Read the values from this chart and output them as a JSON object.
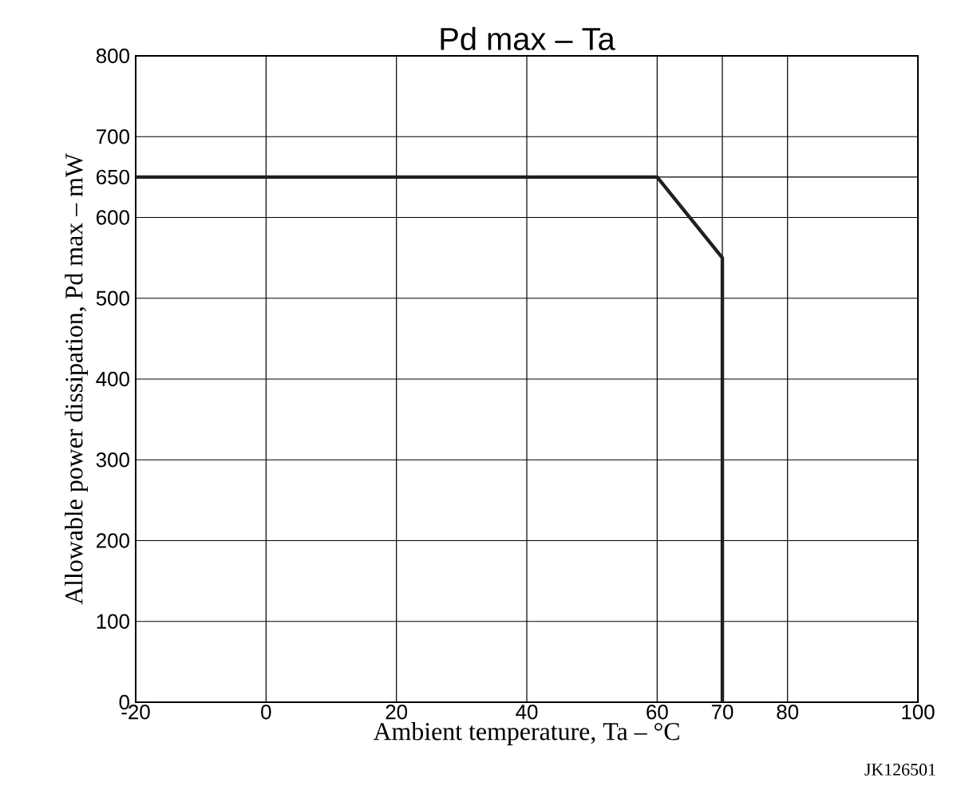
{
  "chart_data": {
    "type": "line",
    "title": "Pd max – Ta",
    "xlabel": "Ambient temperature, Ta – °C",
    "ylabel": "Allowable power dissipation, Pd max – mW",
    "series": [
      {
        "color": "#231f20",
        "x": [
          -20,
          60,
          70,
          70
        ],
        "values": [
          650,
          650,
          550,
          0
        ]
      }
    ],
    "xlim": [
      -20,
      100
    ],
    "ylim": [
      0,
      800
    ],
    "xticks": [
      -20,
      0,
      20,
      40,
      60,
      70,
      80,
      100
    ],
    "yticks": [
      0,
      100,
      200,
      300,
      400,
      500,
      600,
      650,
      700,
      800
    ],
    "grid": true,
    "marker": "none",
    "line_style": "solid",
    "annotations": [
      "JK126501"
    ]
  }
}
